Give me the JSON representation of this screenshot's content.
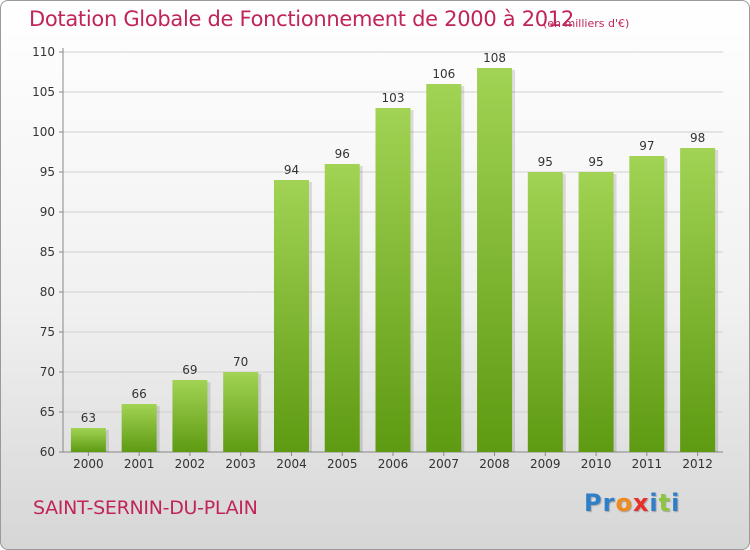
{
  "header": {
    "title": "Dotation Globale de Fonctionnement de 2000 à 2012",
    "unit": "(en milliers d'€)"
  },
  "footer": {
    "commune": "SAINT-SERNIN-DU-PLAIN",
    "logo": [
      "P",
      "r",
      "o",
      "x",
      "i",
      "t",
      "i"
    ]
  },
  "colors": {
    "accent": "#c0245a",
    "bar_top": "#a2d354",
    "bar_bottom": "#5e9a12",
    "logo": [
      "#2f7fc8",
      "#2f7fc8",
      "#f08a1c",
      "#e8302a",
      "#2f7fc8",
      "#8cc63f",
      "#2f7fc8"
    ]
  },
  "chart_data": {
    "type": "bar",
    "title": "Dotation Globale de Fonctionnement de 2000 à 2012",
    "subtitle": "(en milliers d'€)",
    "categories": [
      "2000",
      "2001",
      "2002",
      "2003",
      "2004",
      "2005",
      "2006",
      "2007",
      "2008",
      "2009",
      "2010",
      "2011",
      "2012"
    ],
    "values": [
      63,
      66,
      69,
      70,
      94,
      96,
      103,
      106,
      108,
      95,
      95,
      97,
      98
    ],
    "ylim": [
      60,
      110
    ],
    "yticks": [
      60,
      65,
      70,
      75,
      80,
      85,
      90,
      95,
      100,
      105,
      110
    ],
    "grid": true
  }
}
